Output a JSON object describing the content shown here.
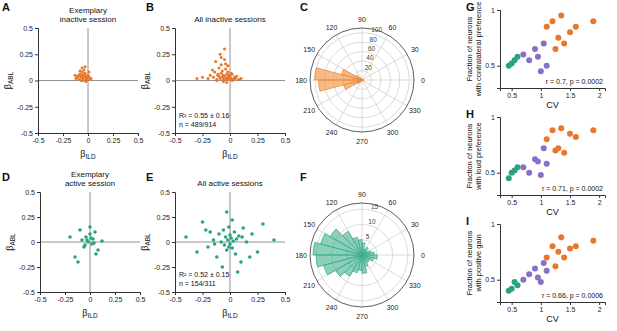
{
  "chart_data": [
    {
      "type": "scatter",
      "panel": "A",
      "title": [
        "Exemplary",
        "inactive session"
      ],
      "xlabel": "βILD",
      "ylabel": "βABL",
      "xlim": [
        -0.5,
        0.5
      ],
      "ylim": [
        -0.5,
        0.5
      ],
      "xticks": [
        -0.5,
        -0.25,
        0,
        0.25,
        0.5
      ],
      "yticks": [
        -0.5,
        -0.25,
        0,
        0.25,
        0.5
      ],
      "color": "#e8762b",
      "x": [
        -0.12,
        -0.1,
        -0.09,
        -0.08,
        -0.07,
        -0.06,
        -0.05,
        -0.05,
        -0.04,
        -0.03,
        -0.03,
        -0.02,
        -0.02,
        -0.01,
        0,
        0.01,
        0.02,
        -0.11,
        -0.08,
        -0.06,
        -0.04,
        -0.07,
        -0.09,
        -0.03,
        0.03,
        -0.05,
        -0.02,
        -0.13,
        0.01,
        -0.06
      ],
      "values": [
        0.02,
        0.04,
        0.01,
        0.06,
        0.03,
        0.08,
        0.02,
        0.05,
        0.1,
        0.03,
        0.07,
        0.01,
        0.04,
        0.02,
        0.05,
        0.03,
        0.01,
        0.03,
        0.09,
        0.12,
        0.06,
        0.0,
        0.05,
        0.13,
        0.02,
        0.0,
        -0.01,
        0.05,
        0.08,
        0.04
      ]
    },
    {
      "type": "scatter",
      "panel": "B",
      "title": [
        "All inactive sessions"
      ],
      "xlabel": "βILD",
      "ylabel": "βABL",
      "xlim": [
        -0.5,
        0.5
      ],
      "ylim": [
        -0.5,
        0.5
      ],
      "xticks": [
        -0.5,
        -0.25,
        0,
        0.25,
        0.5
      ],
      "yticks": [
        -0.5,
        -0.25,
        0,
        0.25,
        0.5
      ],
      "color": "#e8762b",
      "annotations": [
        "R² = 0.55 ± 0.16",
        "n = 489/914"
      ],
      "x": [
        -0.2,
        -0.18,
        -0.15,
        -0.14,
        -0.12,
        -0.11,
        -0.1,
        -0.1,
        -0.09,
        -0.08,
        -0.08,
        -0.07,
        -0.07,
        -0.06,
        -0.06,
        -0.05,
        -0.05,
        -0.04,
        -0.04,
        -0.03,
        -0.03,
        -0.02,
        -0.02,
        -0.01,
        -0.01,
        0,
        0,
        0.01,
        0.02,
        0.03,
        0.04,
        0.05,
        0.06,
        0.08,
        -0.25,
        -0.3,
        -0.16,
        -0.13,
        -0.09,
        -0.05,
        -0.02,
        0.01,
        -0.12,
        -0.06,
        -0.03,
        0.02,
        -0.08,
        -0.11,
        -0.04,
        0.1
      ],
      "values": [
        0.02,
        0.05,
        0.03,
        0.08,
        0.01,
        0.06,
        0.04,
        0.12,
        0.02,
        0.07,
        0.15,
        0.03,
        0.09,
        0.01,
        0.05,
        0.2,
        0.04,
        0.02,
        0.11,
        0.06,
        0.01,
        0.03,
        0.08,
        0.02,
        0.05,
        0.01,
        0.04,
        0.02,
        0.06,
        0.01,
        0.03,
        0.02,
        0.04,
        0.01,
        0.03,
        0.02,
        0.1,
        0.18,
        0.25,
        0.3,
        0.14,
        0.07,
        0.0,
        -0.01,
        -0.02,
        0.0,
        0.22,
        0.05,
        0.16,
        0.02
      ]
    },
    {
      "type": "polar",
      "panel": "C",
      "color": "#f08c3a",
      "xlim": [
        0,
        360
      ],
      "xticks": [
        0,
        30,
        60,
        90,
        120,
        150,
        180,
        210,
        240,
        270,
        300,
        330
      ],
      "ylim": [
        0,
        110
      ],
      "yticks": [
        20,
        40,
        60,
        80,
        100
      ],
      "bins": [
        0,
        15,
        30,
        45,
        60,
        75,
        90,
        105,
        120,
        135,
        150,
        165,
        180,
        195,
        210,
        225,
        240,
        255,
        270,
        285,
        300,
        315,
        330,
        345,
        360
      ],
      "values": [
        3,
        1,
        0,
        1,
        0,
        1,
        2,
        3,
        6,
        15,
        45,
        100,
        92,
        40,
        12,
        5,
        2,
        1,
        1,
        0,
        1,
        2,
        3,
        4
      ]
    },
    {
      "type": "scatter",
      "panel": "D",
      "title": [
        "Exemplary",
        "active session"
      ],
      "xlabel": "βILD",
      "ylabel": "βABL",
      "xlim": [
        -0.5,
        0.5
      ],
      "ylim": [
        -0.5,
        0.5
      ],
      "xticks": [
        -0.5,
        -0.25,
        0,
        0.25,
        0.5
      ],
      "yticks": [
        -0.5,
        -0.25,
        0,
        0.25,
        0.5
      ],
      "color": "#2aa383",
      "x": [
        -0.2,
        -0.15,
        -0.1,
        -0.08,
        -0.05,
        -0.04,
        -0.02,
        0,
        0.02,
        0.03,
        0.05,
        0.08,
        0.12,
        -0.06,
        0.01,
        -0.03,
        0.04,
        -0.12,
        0.06,
        0.0
      ],
      "values": [
        0.05,
        -0.15,
        0.12,
        0.02,
        -0.03,
        0.05,
        0.0,
        0.08,
        -0.02,
        0.03,
        0.1,
        -0.08,
        0.01,
        -0.05,
        0.04,
        0.02,
        -0.01,
        -0.2,
        -0.12,
        0.15
      ]
    },
    {
      "type": "scatter",
      "panel": "E",
      "title": [
        "All active sessions"
      ],
      "xlabel": "βILD",
      "ylabel": "βABL",
      "xlim": [
        -0.5,
        0.5
      ],
      "ylim": [
        -0.5,
        0.5
      ],
      "xticks": [
        -0.5,
        -0.25,
        0,
        0.25,
        0.5
      ],
      "yticks": [
        -0.5,
        -0.25,
        0,
        0.25,
        0.5
      ],
      "color": "#2aa383",
      "annotations": [
        "R² = 0.52 ± 0.15",
        "n = 154/311"
      ],
      "x": [
        -0.4,
        -0.3,
        -0.25,
        -0.2,
        -0.18,
        -0.15,
        -0.12,
        -0.1,
        -0.08,
        -0.06,
        -0.05,
        -0.04,
        -0.03,
        -0.02,
        -0.01,
        0,
        0.01,
        0.02,
        0.03,
        0.04,
        0.05,
        0.06,
        0.08,
        0.1,
        0.12,
        0.15,
        0.2,
        0.25,
        0.3,
        0.4,
        -0.07,
        -0.03,
        0.02,
        0.07,
        -0.14,
        0.11,
        -0.01,
        0.0,
        -0.22,
        0.18
      ],
      "values": [
        0.05,
        -0.1,
        0.2,
        -0.05,
        0.1,
        0.02,
        -0.15,
        0.08,
        0.0,
        0.12,
        -0.03,
        0.05,
        -0.08,
        0.02,
        0.15,
        -0.02,
        0.04,
        -0.06,
        0.01,
        0.1,
        -0.12,
        0.03,
        0.06,
        -0.2,
        0.14,
        0.0,
        0.08,
        -0.1,
        0.18,
        0.02,
        -0.25,
        0.3,
        0.22,
        -0.3,
        -0.02,
        0.05,
        -0.05,
        0.07,
        0.12,
        -0.15
      ]
    },
    {
      "type": "polar",
      "panel": "F",
      "color": "#3fb08e",
      "xlim": [
        0,
        360
      ],
      "xticks": [
        0,
        30,
        60,
        90,
        120,
        150,
        180,
        210,
        240,
        270,
        300,
        330
      ],
      "ylim": [
        0,
        17
      ],
      "yticks": [
        5,
        10,
        15
      ],
      "bins": [
        0,
        15,
        30,
        45,
        60,
        75,
        90,
        105,
        120,
        135,
        150,
        165,
        180,
        195,
        210,
        225,
        240,
        255,
        270,
        285,
        300,
        315,
        330,
        345,
        360
      ],
      "values": [
        4,
        3,
        2,
        3,
        2,
        4,
        5,
        6,
        9,
        12,
        14,
        16,
        15,
        13,
        10,
        8,
        6,
        5,
        6,
        4,
        3,
        3,
        4,
        5
      ]
    },
    {
      "type": "scatter",
      "panel": "G",
      "xlabel": "CV",
      "ylabel": [
        "Fraction of neurons",
        "with contralateral preference"
      ],
      "xlim": [
        0.3,
        2.1
      ],
      "ylim": [
        0.3,
        1
      ],
      "xticks": [
        0.5,
        1,
        1.5,
        2
      ],
      "yticks": [
        0.5,
        1
      ],
      "annotations": [
        "r = 0.7, p = 0.0002"
      ],
      "series": [
        {
          "color": "#2aa383",
          "x": [
            0.45,
            0.5,
            0.55,
            0.6
          ],
          "values": [
            0.5,
            0.52,
            0.55,
            0.58
          ]
        },
        {
          "color": "#8b6fc6",
          "x": [
            0.7,
            0.8,
            0.9,
            0.95,
            1.0,
            1.05,
            1.1
          ],
          "values": [
            0.6,
            0.55,
            0.65,
            0.58,
            0.45,
            0.7,
            0.5
          ]
        },
        {
          "color": "#e8762b",
          "x": [
            1.1,
            1.2,
            1.25,
            1.3,
            1.35,
            1.4,
            1.5,
            1.6,
            1.9
          ],
          "values": [
            0.85,
            0.9,
            0.65,
            0.75,
            0.95,
            0.7,
            0.8,
            0.85,
            0.9
          ]
        }
      ]
    },
    {
      "type": "scatter",
      "panel": "H",
      "xlabel": "CV",
      "ylabel": [
        "Fraction of neurons",
        "with loud preference"
      ],
      "xlim": [
        0.3,
        2.1
      ],
      "ylim": [
        0.3,
        1
      ],
      "xticks": [
        0.5,
        1,
        1.5,
        2
      ],
      "yticks": [
        0.5,
        1
      ],
      "annotations": [
        "r = 0.71, p = 0.0002"
      ],
      "series": [
        {
          "color": "#2aa383",
          "x": [
            0.45,
            0.5,
            0.55,
            0.6
          ],
          "values": [
            0.45,
            0.5,
            0.52,
            0.55
          ]
        },
        {
          "color": "#8b6fc6",
          "x": [
            0.7,
            0.8,
            0.9,
            0.95,
            1.0,
            1.05,
            1.1
          ],
          "values": [
            0.55,
            0.5,
            0.62,
            0.6,
            0.48,
            0.72,
            0.58
          ]
        },
        {
          "color": "#e8762b",
          "x": [
            1.1,
            1.2,
            1.25,
            1.3,
            1.35,
            1.4,
            1.5,
            1.6,
            1.9
          ],
          "values": [
            0.8,
            0.88,
            0.7,
            0.72,
            0.9,
            0.68,
            0.85,
            0.82,
            0.88
          ]
        }
      ]
    },
    {
      "type": "scatter",
      "panel": "I",
      "xlabel": "CV",
      "ylabel": [
        "Fraction of neurons",
        "with positive gain"
      ],
      "xlim": [
        0.3,
        2.1
      ],
      "ylim": [
        0.3,
        1
      ],
      "xticks": [
        0.5,
        1,
        1.5,
        2
      ],
      "yticks": [
        0.5,
        1
      ],
      "annotations": [
        "r = 0.66, p = 0.0006"
      ],
      "series": [
        {
          "color": "#2aa383",
          "x": [
            0.45,
            0.5,
            0.55,
            0.6
          ],
          "values": [
            0.4,
            0.42,
            0.48,
            0.45
          ]
        },
        {
          "color": "#8b6fc6",
          "x": [
            0.7,
            0.8,
            0.9,
            0.95,
            1.0,
            1.05,
            1.1
          ],
          "values": [
            0.5,
            0.55,
            0.6,
            0.52,
            0.48,
            0.65,
            0.58
          ]
        },
        {
          "color": "#e8762b",
          "x": [
            1.1,
            1.2,
            1.25,
            1.3,
            1.35,
            1.4,
            1.5,
            1.6,
            1.9
          ],
          "values": [
            0.7,
            0.8,
            0.62,
            0.75,
            0.88,
            0.7,
            0.78,
            0.8,
            0.85
          ]
        }
      ]
    }
  ]
}
